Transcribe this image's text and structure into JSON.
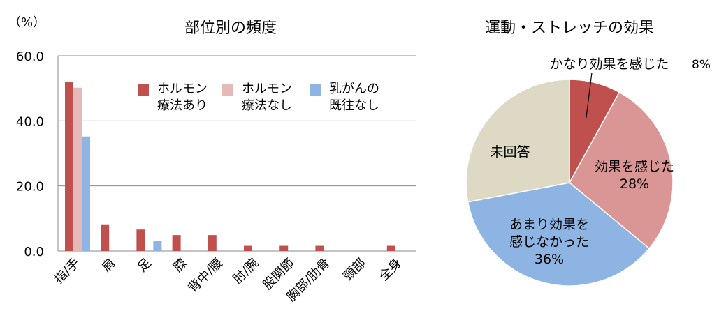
{
  "chart_data": [
    {
      "type": "bar",
      "title": "部位別の頻度",
      "ylabel": "（%）",
      "ylim": [
        0,
        60
      ],
      "yticks": [
        "60.0",
        "40.0",
        "20.0",
        "0.0"
      ],
      "grid": true,
      "legend_position": "top-right",
      "categories": [
        "指/手",
        "肩",
        "足",
        "膝",
        "背中/腰",
        "肘/腕",
        "股関節",
        "胸部/肋骨",
        "頸部",
        "全身"
      ],
      "series": [
        {
          "name": "ホルモン\n療法あり",
          "color": "#c0504d",
          "values": [
            52.0,
            8.2,
            6.6,
            4.9,
            4.9,
            1.6,
            1.6,
            1.6,
            0,
            1.6
          ]
        },
        {
          "name": "ホルモン\n療法なし",
          "color": "#e6b9b8",
          "values": [
            50.2,
            0,
            0,
            0,
            0,
            0,
            0,
            0,
            0,
            0
          ]
        },
        {
          "name": "乳がんの\n既往なし",
          "color": "#8eb4e3",
          "values": [
            35.2,
            0,
            3.0,
            0,
            0,
            0,
            0,
            0,
            0,
            0
          ]
        }
      ]
    },
    {
      "type": "pie",
      "title": "運動・ストレッチの効果",
      "slices": [
        {
          "label": "かなり効果を感じた",
          "pct_text": "8%",
          "value": 8,
          "color": "#c0504d"
        },
        {
          "label": "効果を感じた",
          "pct_text": "28%",
          "value": 28,
          "color": "#d99694"
        },
        {
          "label": "あまり効果を\n感じなかった",
          "pct_text": "36%",
          "value": 36,
          "color": "#8eb4e3"
        },
        {
          "label": "未回答",
          "pct_text": "",
          "value": 28,
          "color": "#ddd9c4"
        }
      ]
    }
  ]
}
